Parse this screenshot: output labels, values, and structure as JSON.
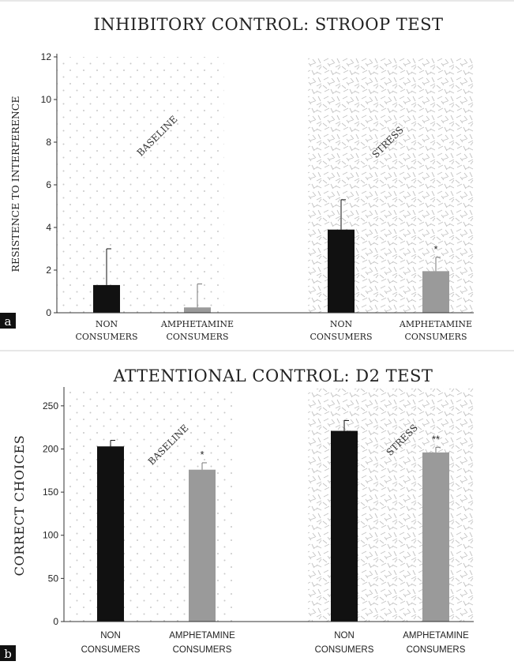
{
  "panels": [
    {
      "panel_letter": "a",
      "title": "INHIBITORY CONTROL: STROOP TEST",
      "ylabel": "RESISTENCE TO INTERFERENCE",
      "yticks": [
        "0",
        "2",
        "4",
        "6",
        "8",
        "10",
        "12"
      ],
      "conditions": [
        "BASELINE",
        "STRESS"
      ],
      "groups": [
        {
          "line1": "NON",
          "line2": "CONSUMERS"
        },
        {
          "line1": "AMPHETAMINE",
          "line2": "CONSUMERS"
        },
        {
          "line1": "NON",
          "line2": "CONSUMERS"
        },
        {
          "line1": "AMPHETAMINE",
          "line2": "CONSUMERS"
        }
      ],
      "significance": [
        "",
        "",
        "",
        "*"
      ]
    },
    {
      "panel_letter": "b",
      "title": "ATTENTIONAL CONTROL: D2 TEST",
      "ylabel": "CORRECT CHOICES",
      "yticks": [
        "0",
        "50",
        "100",
        "150",
        "200",
        "250"
      ],
      "conditions": [
        "BASELINE",
        "STRESS"
      ],
      "groups": [
        {
          "line1": "NON",
          "line2": "CONSUMERS"
        },
        {
          "line1": "AMPHETAMINE",
          "line2": "CONSUMERS"
        },
        {
          "line1": "NON",
          "line2": "CONSUMERS"
        },
        {
          "line1": "AMPHETAMINE",
          "line2": "CONSUMERS"
        }
      ],
      "significance": [
        "",
        "*",
        "",
        "**"
      ]
    }
  ],
  "colors": {
    "non_consumers": "#111111",
    "amphetamine_consumers": "#9a9a9a",
    "dot_pattern": "#c8c8c8",
    "hatch_pattern": "#c2c2c2"
  },
  "chart_data": [
    {
      "type": "bar",
      "title": "INHIBITORY CONTROL: STROOP TEST",
      "ylabel": "RESISTENCE TO INTERFERENCE",
      "ylim": [
        0,
        12
      ],
      "conditions": [
        "BASELINE",
        "STRESS"
      ],
      "series": [
        {
          "name": "NON CONSUMERS",
          "values": [
            1.3,
            3.9
          ],
          "errors": [
            1.7,
            1.4
          ]
        },
        {
          "name": "AMPHETAMINE CONSUMERS",
          "values": [
            0.25,
            1.95
          ],
          "errors": [
            1.1,
            0.65
          ]
        }
      ],
      "grid": false
    },
    {
      "type": "bar",
      "title": "ATTENTIONAL CONTROL: D2 TEST",
      "ylabel": "CORRECT CHOICES",
      "ylim": [
        0,
        270
      ],
      "conditions": [
        "BASELINE",
        "STRESS"
      ],
      "series": [
        {
          "name": "NON CONSUMERS",
          "values": [
            203,
            221
          ],
          "errors": [
            7,
            12
          ]
        },
        {
          "name": "AMPHETAMINE CONSUMERS",
          "values": [
            176,
            196
          ],
          "errors": [
            8,
            6
          ]
        }
      ],
      "grid": false
    }
  ]
}
